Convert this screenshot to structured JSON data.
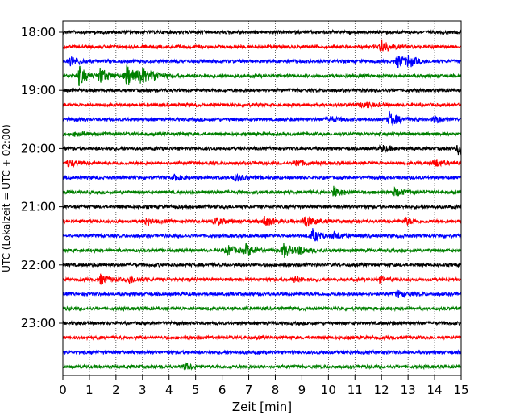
{
  "chart_data": {
    "type": "line",
    "title": "",
    "xlabel": "Zeit  [min]",
    "ylabel": "UTC (Lokalzeit = UTC + 02:00)",
    "xlim": [
      0,
      15
    ],
    "x_ticks": [
      "0",
      "1",
      "2",
      "3",
      "4",
      "5",
      "6",
      "7",
      "8",
      "9",
      "10",
      "11",
      "12",
      "13",
      "14",
      "15"
    ],
    "y_tick_labels": [
      "18:00",
      "19:00",
      "20:00",
      "21:00",
      "22:00",
      "23:00"
    ],
    "grid": "vertical-dotted",
    "legend": "none",
    "trace_interval_minutes": 15,
    "trace_colors": [
      "#000000",
      "#ff0000",
      "#0000ff",
      "#008000"
    ],
    "traces": [
      {
        "start": "18:00",
        "color": "#000000",
        "events": []
      },
      {
        "start": "18:15",
        "color": "#ff0000",
        "events": [
          {
            "t": 12.0,
            "amp": 8
          }
        ]
      },
      {
        "start": "18:30",
        "color": "#0000ff",
        "events": [
          {
            "t": 0.3,
            "amp": 6
          },
          {
            "t": 12.6,
            "amp": 8
          },
          {
            "t": 13.0,
            "amp": 6
          }
        ]
      },
      {
        "start": "18:45",
        "color": "#008000",
        "events": [
          {
            "t": 0.6,
            "amp": 12
          },
          {
            "t": 1.4,
            "amp": 9
          },
          {
            "t": 2.4,
            "amp": 14
          },
          {
            "t": 2.9,
            "amp": 10
          },
          {
            "t": 3.4,
            "amp": 5
          }
        ]
      },
      {
        "start": "19:00",
        "color": "#000000",
        "events": []
      },
      {
        "start": "19:15",
        "color": "#ff0000",
        "events": [
          {
            "t": 11.3,
            "amp": 5
          }
        ]
      },
      {
        "start": "19:30",
        "color": "#0000ff",
        "events": [
          {
            "t": 10.0,
            "amp": 4
          },
          {
            "t": 12.3,
            "amp": 9
          },
          {
            "t": 14.0,
            "amp": 5
          }
        ]
      },
      {
        "start": "19:45",
        "color": "#008000",
        "events": [
          {
            "t": 0.5,
            "amp": 4
          }
        ]
      },
      {
        "start": "20:00",
        "color": "#000000",
        "events": [
          {
            "t": 12.0,
            "amp": 4
          },
          {
            "t": 14.9,
            "amp": 9
          }
        ]
      },
      {
        "start": "20:15",
        "color": "#ff0000",
        "events": [
          {
            "t": 0.2,
            "amp": 4
          },
          {
            "t": 8.8,
            "amp": 4
          },
          {
            "t": 14.0,
            "amp": 5
          }
        ]
      },
      {
        "start": "20:30",
        "color": "#0000ff",
        "events": [
          {
            "t": 4.2,
            "amp": 3
          },
          {
            "t": 6.5,
            "amp": 4
          }
        ]
      },
      {
        "start": "20:45",
        "color": "#008000",
        "events": [
          {
            "t": 10.2,
            "amp": 6
          },
          {
            "t": 12.5,
            "amp": 5
          }
        ]
      },
      {
        "start": "21:00",
        "color": "#000000",
        "events": []
      },
      {
        "start": "21:15",
        "color": "#ff0000",
        "events": [
          {
            "t": 3.1,
            "amp": 4
          },
          {
            "t": 5.7,
            "amp": 5
          },
          {
            "t": 7.6,
            "amp": 6
          },
          {
            "t": 9.1,
            "amp": 8
          },
          {
            "t": 12.9,
            "amp": 4
          }
        ]
      },
      {
        "start": "21:30",
        "color": "#0000ff",
        "events": [
          {
            "t": 9.4,
            "amp": 8
          },
          {
            "t": 10.2,
            "amp": 4
          }
        ]
      },
      {
        "start": "21:45",
        "color": "#008000",
        "events": [
          {
            "t": 6.2,
            "amp": 6
          },
          {
            "t": 6.9,
            "amp": 7
          },
          {
            "t": 8.3,
            "amp": 9
          },
          {
            "t": 8.9,
            "amp": 4
          }
        ]
      },
      {
        "start": "22:00",
        "color": "#000000",
        "events": []
      },
      {
        "start": "22:15",
        "color": "#ff0000",
        "events": [
          {
            "t": 1.4,
            "amp": 6
          },
          {
            "t": 2.5,
            "amp": 5
          },
          {
            "t": 8.7,
            "amp": 3
          },
          {
            "t": 11.9,
            "amp": 3
          }
        ]
      },
      {
        "start": "22:30",
        "color": "#0000ff",
        "events": [
          {
            "t": 12.6,
            "amp": 4
          }
        ]
      },
      {
        "start": "22:45",
        "color": "#008000",
        "events": []
      },
      {
        "start": "23:00",
        "color": "#000000",
        "events": []
      },
      {
        "start": "23:15",
        "color": "#ff0000",
        "events": []
      },
      {
        "start": "23:30",
        "color": "#0000ff",
        "events": []
      },
      {
        "start": "23:45",
        "color": "#008000",
        "events": [
          {
            "t": 4.6,
            "amp": 4
          }
        ]
      }
    ]
  }
}
